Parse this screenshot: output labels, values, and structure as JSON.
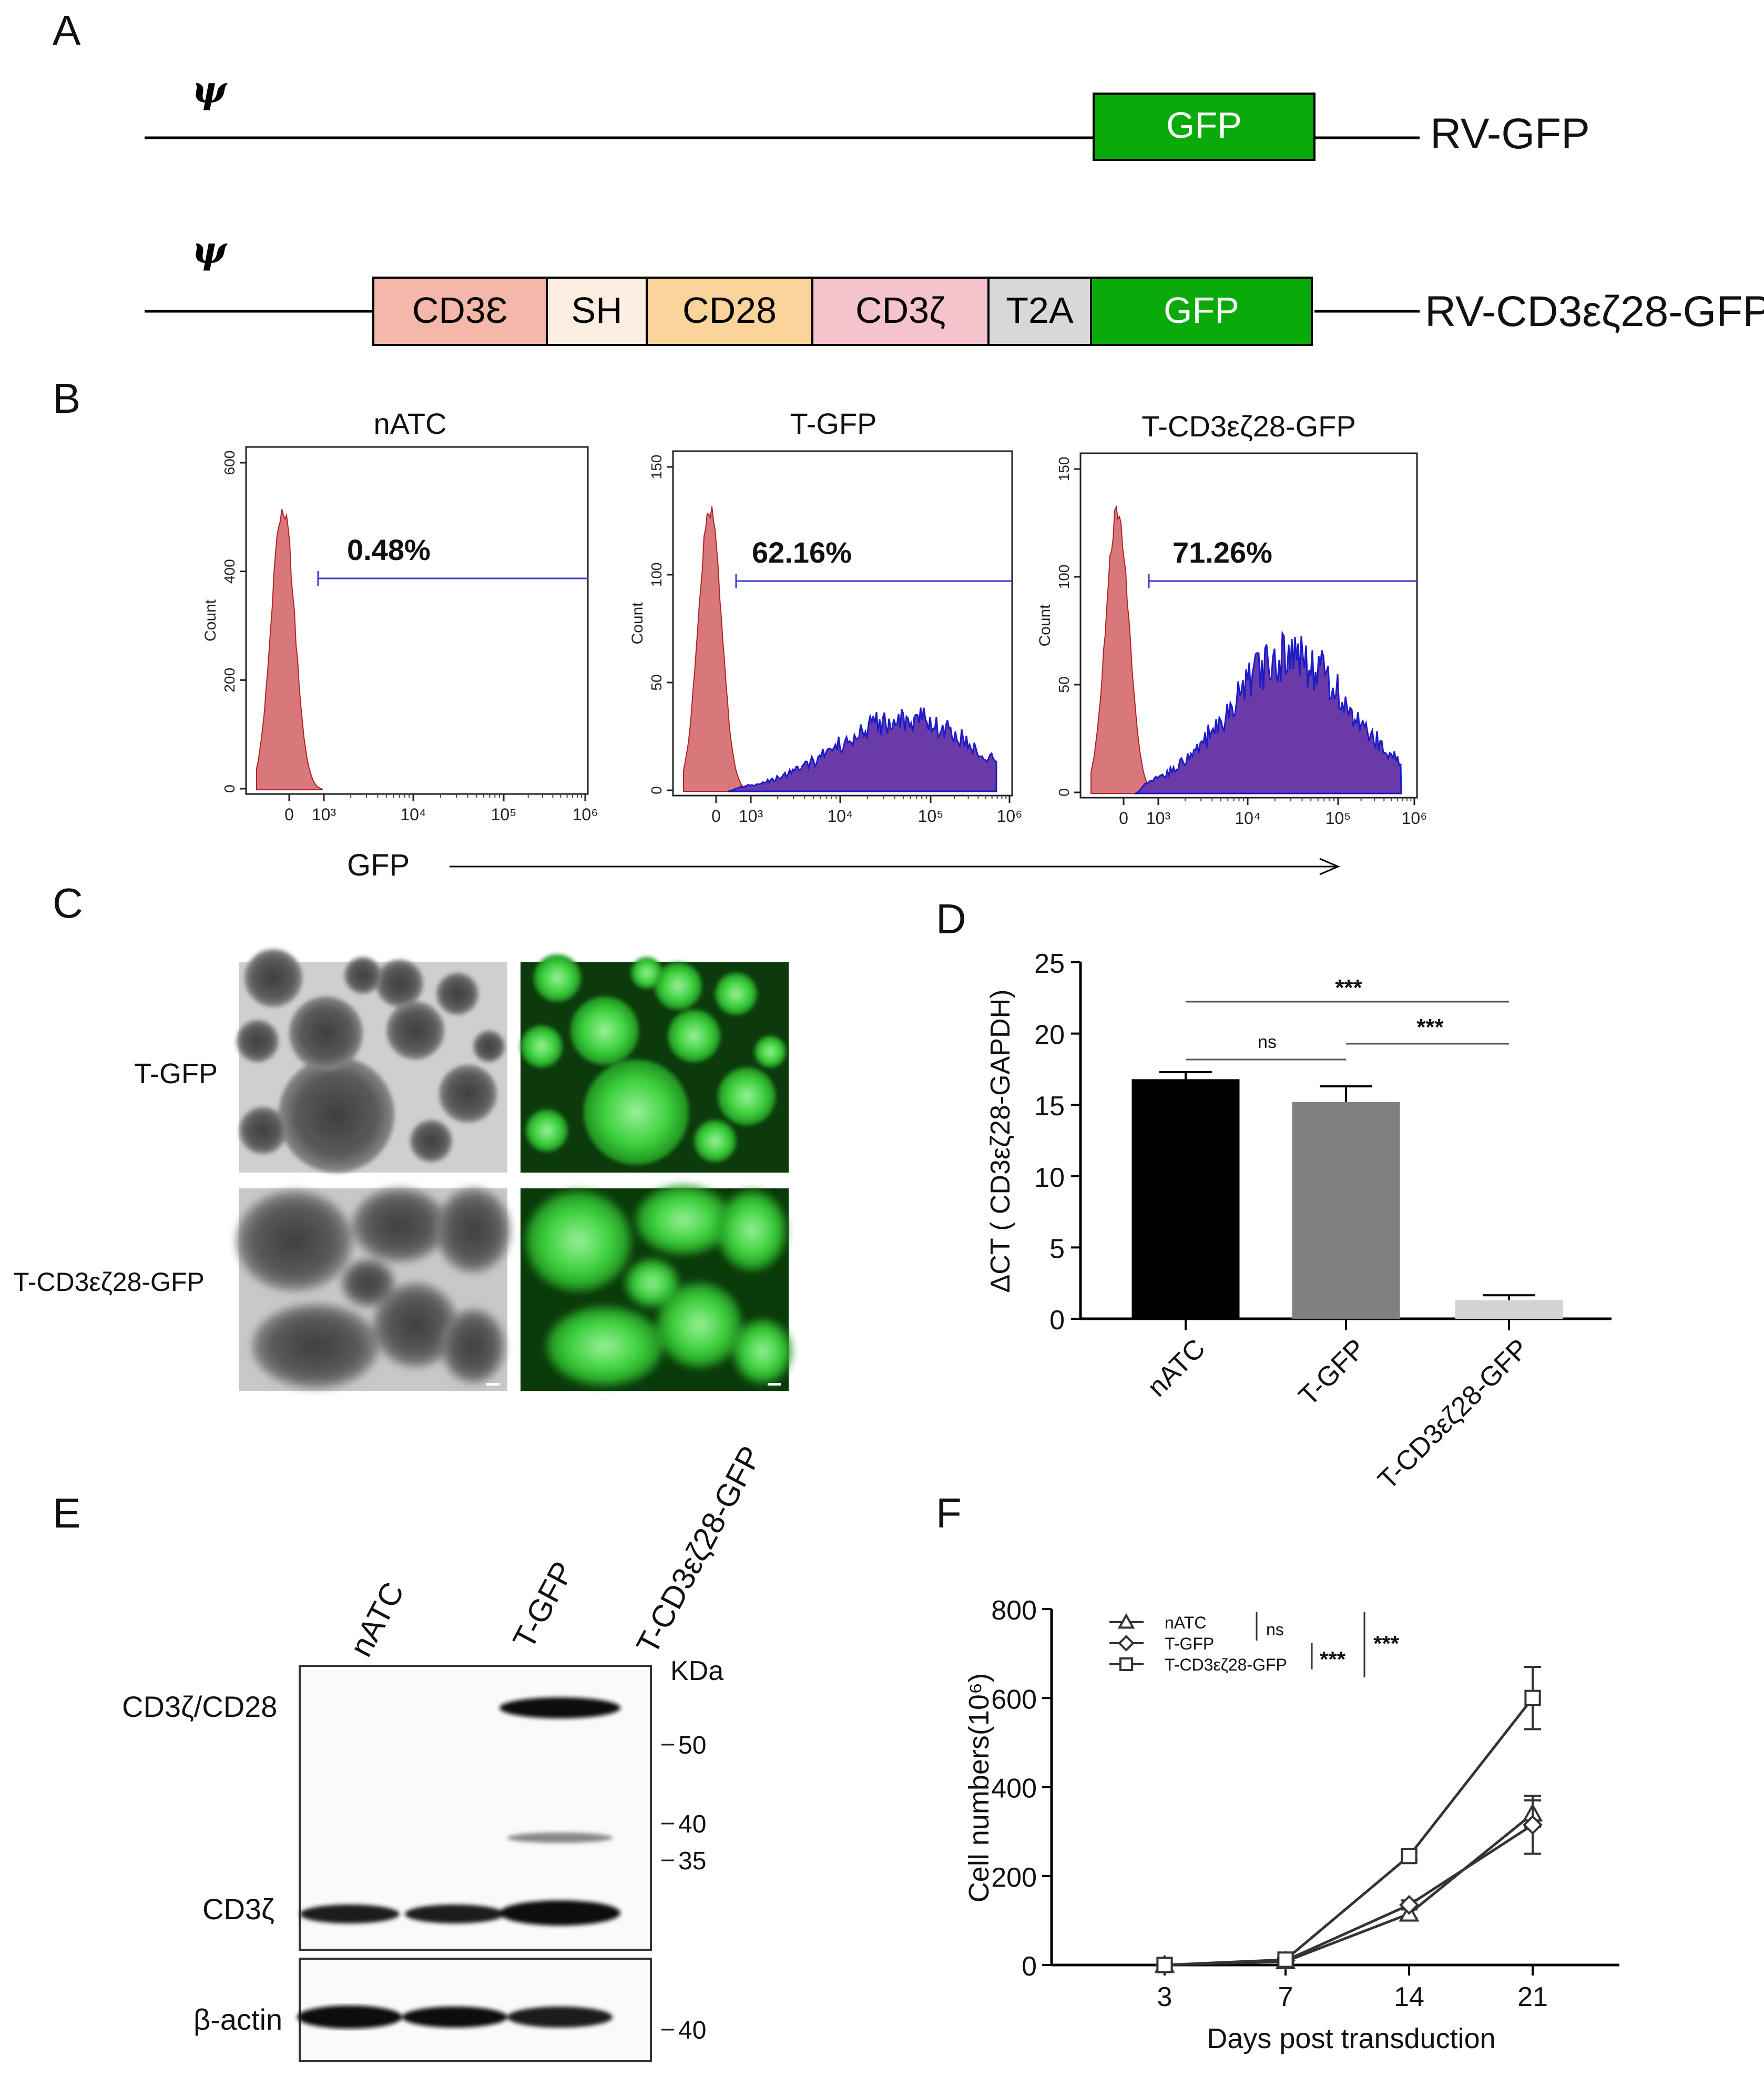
{
  "panel_letters": {
    "a": "A",
    "b": "B",
    "c": "C",
    "d": "D",
    "e": "E",
    "f": "F"
  },
  "construct_a": {
    "psi": "ψ",
    "rows": [
      {
        "name": "RV-GFP",
        "segments": [
          {
            "label": "GFP",
            "color": "#0aaa0a",
            "text_color": "#ffffff"
          }
        ]
      },
      {
        "name": "RV-CD3εζ28-GFP",
        "segments": [
          {
            "label": "CD3Ɛ",
            "color": "#f3b8a9",
            "text_color": "#000000"
          },
          {
            "label": "SH",
            "color": "#fdeee2",
            "text_color": "#000000"
          },
          {
            "label": "CD28",
            "color": "#fbd49b",
            "text_color": "#000000"
          },
          {
            "label": "CD3ζ",
            "color": "#f4c3cc",
            "text_color": "#000000"
          },
          {
            "label": "T2A",
            "color": "#d8d8d8",
            "text_color": "#000000"
          },
          {
            "label": "GFP",
            "color": "#0aaa0a",
            "text_color": "#ffffff"
          }
        ]
      }
    ]
  },
  "flow_b": {
    "x_axis_label": "GFP",
    "y_axis_label": "Count",
    "x_ticks": [
      "0",
      "10³",
      "10⁴",
      "10⁵",
      "10⁶"
    ],
    "panels": [
      {
        "title": "nATC",
        "percent": "0.48%",
        "yticks": [
          "0",
          "200",
          "400",
          "600"
        ]
      },
      {
        "title": "T-GFP",
        "percent": "62.16%",
        "yticks": [
          "0",
          "50",
          "100",
          "150"
        ]
      },
      {
        "title": "T-CD3εζ28-GFP",
        "percent": "71.26%",
        "yticks": [
          "0",
          "50",
          "100",
          "150"
        ]
      }
    ],
    "colors": {
      "negative": "#d9787a",
      "positive": "#6a3aa8",
      "outline_blue": "#1b1bc8"
    }
  },
  "micro_c": {
    "rows": [
      {
        "label": "T-GFP"
      },
      {
        "label": "T-CD3εζ28-GFP"
      }
    ]
  },
  "western_e": {
    "lanes": [
      "nATC",
      "T-GFP",
      "T-CD3εζ28-GFP"
    ],
    "band_labels": [
      "CD3ζ/CD28",
      "CD3ζ",
      "β-actin"
    ],
    "kda_label": "KDa",
    "markers": [
      "50",
      "40",
      "35",
      "40"
    ]
  },
  "chart_data": [
    {
      "type": "bar",
      "panel": "D",
      "categories": [
        "nATC",
        "T-GFP",
        "T-CD3εζ28-GFP"
      ],
      "values": [
        16.8,
        15.2,
        1.3
      ],
      "errors": [
        0.5,
        1.1,
        0.35
      ],
      "colors": [
        "#000000",
        "#808080",
        "#d3d3d3"
      ],
      "ylabel": "ΔCT ( CD3εζ28-GAPDH)",
      "ylim": [
        0,
        25
      ],
      "yticks": [
        "0",
        "5",
        "10",
        "15",
        "20",
        "25"
      ],
      "significance": [
        {
          "from": "nATC",
          "to": "T-CD3εζ28-GFP",
          "label": "***"
        },
        {
          "from": "nATC",
          "to": "T-GFP",
          "label": "ns"
        },
        {
          "from": "T-GFP",
          "to": "T-CD3εζ28-GFP",
          "label": "***"
        }
      ]
    },
    {
      "type": "line",
      "panel": "F",
      "x": [
        3,
        7,
        14,
        21
      ],
      "xticks": [
        "3",
        "7",
        "14",
        "21"
      ],
      "xlabel": "Days post transduction",
      "ylabel": "Cell numbers(10⁶)",
      "ylim": [
        0,
        800
      ],
      "yticks": [
        "0",
        "200",
        "400",
        "600",
        "800"
      ],
      "series": [
        {
          "name": "nATC",
          "marker": "triangle",
          "values": [
            0,
            8,
            115,
            340
          ],
          "errors": [
            0,
            3,
            10,
            30
          ]
        },
        {
          "name": "T-GFP",
          "marker": "diamond",
          "values": [
            0,
            10,
            135,
            315
          ],
          "errors": [
            0,
            3,
            10,
            65
          ]
        },
        {
          "name": "T-CD3εζ28-GFP",
          "marker": "square",
          "values": [
            0,
            12,
            245,
            600
          ],
          "errors": [
            0,
            3,
            8,
            70
          ]
        }
      ],
      "legend_position": "top-left",
      "significance": [
        {
          "label": "ns"
        },
        {
          "label": "***"
        },
        {
          "label": "***"
        }
      ]
    }
  ]
}
